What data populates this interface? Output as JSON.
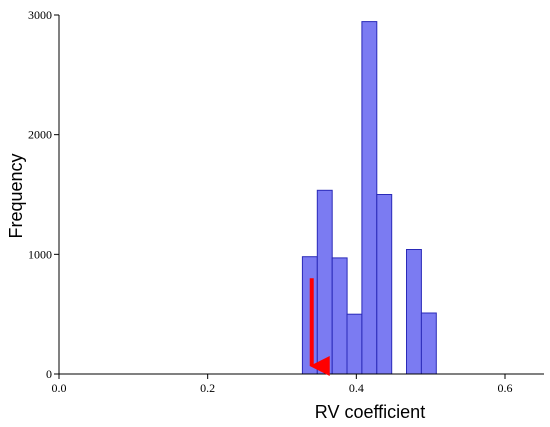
{
  "chart_data": {
    "type": "bar",
    "subtype": "histogram",
    "title": "",
    "xlabel": "RV coefficient",
    "ylabel": "Frequency",
    "xlim": [
      0.0,
      0.65
    ],
    "ylim": [
      0,
      3000
    ],
    "x_ticks": [
      0.0,
      0.2,
      0.4,
      0.6
    ],
    "x_tick_labels": [
      "0.0",
      "0.2",
      "0.4",
      "0.6"
    ],
    "y_ticks": [
      0,
      1000,
      2000,
      3000
    ],
    "y_tick_labels": [
      "0",
      "1000",
      "2000",
      "3000"
    ],
    "bins": [
      {
        "x0": 0.3275,
        "x1": 0.3475,
        "value": 980
      },
      {
        "x0": 0.3475,
        "x1": 0.3675,
        "value": 1535
      },
      {
        "x0": 0.3675,
        "x1": 0.3875,
        "value": 970
      },
      {
        "x0": 0.3875,
        "x1": 0.4075,
        "value": 500
      },
      {
        "x0": 0.4075,
        "x1": 0.4275,
        "value": 2945
      },
      {
        "x0": 0.4275,
        "x1": 0.4475,
        "value": 1500
      },
      {
        "x0": 0.4675,
        "x1": 0.4875,
        "value": 1040
      },
      {
        "x0": 0.4875,
        "x1": 0.5075,
        "value": 510
      }
    ],
    "annotations": [
      {
        "type": "arrow",
        "x": 0.34,
        "y_from": 800,
        "y_to": 0,
        "color": "#ff0000"
      }
    ],
    "bar_fill": "#7b7bf2",
    "bar_stroke": "#2a2ab8",
    "grid": false,
    "legend": "none"
  }
}
